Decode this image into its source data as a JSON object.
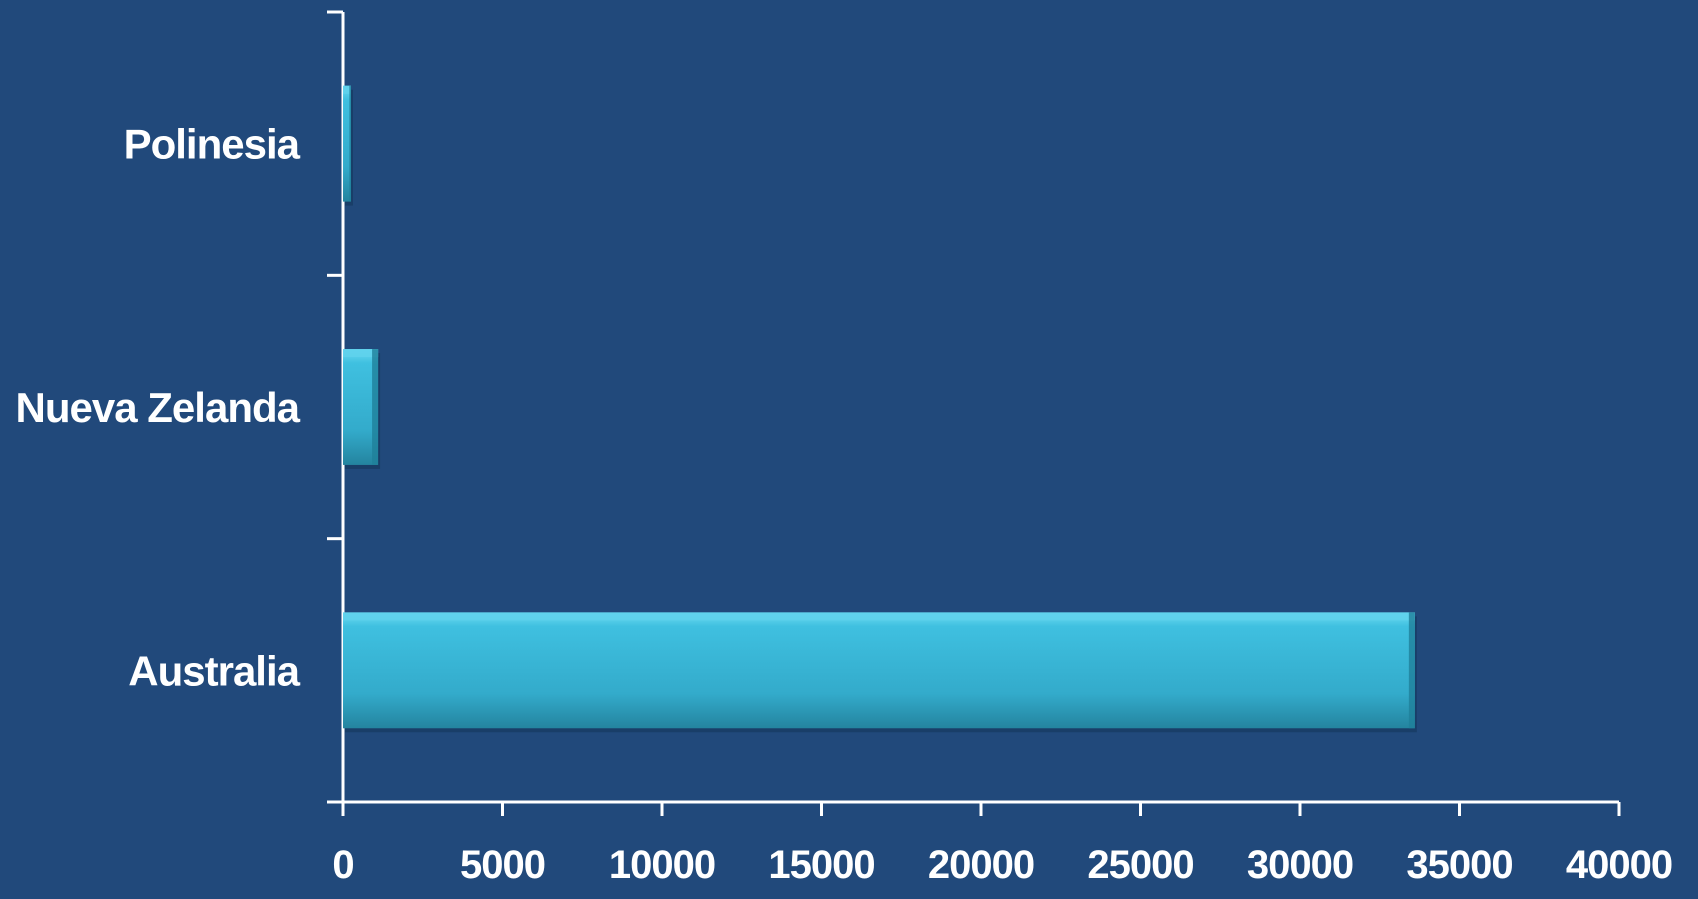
{
  "chart_data": {
    "type": "bar",
    "orientation": "horizontal",
    "categories": [
      "Polinesia",
      "Nueva Zelanda",
      "Australia"
    ],
    "values": [
      250,
      1100,
      33600
    ],
    "xlim": [
      0,
      40000
    ],
    "xticks": [
      "0",
      "5000",
      "10000",
      "15000",
      "20000",
      "25000",
      "30000",
      "35000",
      "40000"
    ],
    "title": "",
    "xlabel": "",
    "ylabel": "",
    "grid": false,
    "legend": "none",
    "colors": {
      "background": "#21497b",
      "bar": "#35b3d3",
      "bar_light": "#5fd2ec",
      "bar_dark": "#1f7f9a",
      "axis": "#ffffff"
    }
  }
}
